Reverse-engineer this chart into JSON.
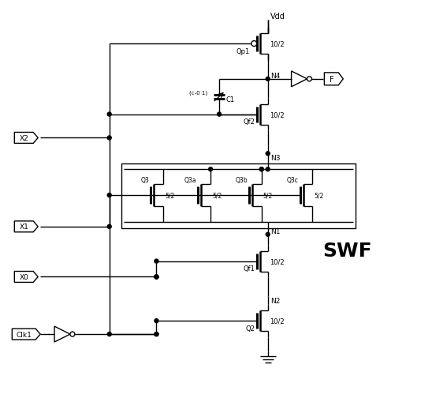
{
  "bg": "#ffffff",
  "lc": "#000000",
  "fig_w": 5.67,
  "fig_h": 5.1,
  "dpi": 100,
  "vdd": "Vdd",
  "n4": "N4",
  "n3": "N3",
  "n1": "N1",
  "n2": "N2",
  "qp1": "Qp1",
  "qf2": "Qf2",
  "qf1": "Qf1",
  "q2": "Q2",
  "q3": "Q3",
  "q3a": "Q3a",
  "q3b": "Q3b",
  "q3c": "Q3c",
  "r10": "10/2",
  "r5": "5/2",
  "c1": "C1",
  "vc": "(c-0 1)",
  "x2": "X2",
  "x1": "X1",
  "x0": "X0",
  "clk1": "Clk1",
  "f": "F",
  "swf": "SWF"
}
